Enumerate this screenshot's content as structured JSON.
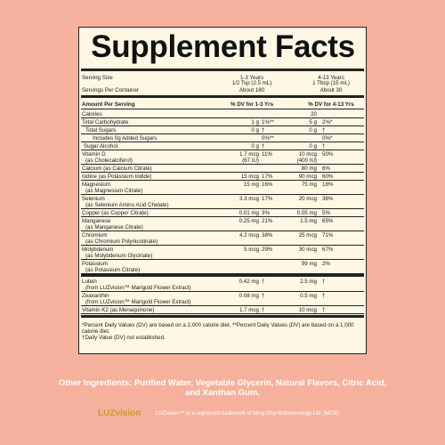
{
  "title": "Supplement Facts",
  "serving": {
    "label": "Serving Size",
    "col1": [
      "1-3 Years",
      "1/2 Tsp (2.5 mL)"
    ],
    "col2": [
      "4-13 Years",
      "1 Tbsp (15 mL)"
    ],
    "containers_label": "Servings Per Container",
    "containers1": "About 180",
    "containers2": "About 30"
  },
  "header": {
    "amount": "Amount Per Serving",
    "dv1": "% DV for 1-3 Yrs",
    "dv2": "% DV for 4-13 Yrs"
  },
  "rows": [
    {
      "name": "Calories",
      "amt2": "20"
    },
    {
      "name": "Total Carbohydrate",
      "amt1": "1 g",
      "dv1": "1%**",
      "amt2": "5 g",
      "dv2": "2%*"
    },
    {
      "name": "Total Sugars",
      "amt1": "0 g",
      "dv1": "†",
      "amt2": "0 g",
      "dv2": "†"
    },
    {
      "name": "Includes 0g Added Sugars",
      "dv1": "0%**",
      "dv2": "0%*"
    },
    {
      "name": "Sugar Alcohol",
      "amt1": "0 g",
      "dv1": "†",
      "amt2": "0 g",
      "dv2": "†"
    },
    {
      "name": "Vitamin D",
      "sub": "(as Cholecalciferol)",
      "amt1": "1.7 mcg",
      "amt1sub": "(67 IU)",
      "dv1": "11%",
      "amt2": "10 mcg",
      "amt2sub": "(400 IU)",
      "dv2": "50%"
    },
    {
      "name": "Calcium (as Calcium Citrate)",
      "amt2": "80 mg",
      "dv2": "6%"
    },
    {
      "name": "Iodine (as Potassium Iodide)",
      "amt1": "15 mcg",
      "dv1": "17%",
      "amt2": "90 mcg",
      "dv2": "60%"
    },
    {
      "name": "Magnesium",
      "sub": "(as Magnesium Citrate)",
      "amt1": "15 mg",
      "dv1": "16%",
      "amt2": "75 mg",
      "dv2": "18%"
    },
    {
      "name": "Selenium",
      "sub": "(as Selenium Amino Acid Chelate)",
      "amt1": "3.3 mcg",
      "dv1": "17%",
      "amt2": "20 mcg",
      "dv2": "36%"
    },
    {
      "name": "Copper (as Copper Citrate)",
      "amt1": "0.01 mg",
      "dv1": "3%",
      "amt2": "0.05 mg",
      "dv2": "5%"
    },
    {
      "name": "Manganese",
      "sub": "(as Manganese Citrate)",
      "amt1": "0.25 mg",
      "dv1": "21%",
      "amt2": "1.5 mg",
      "dv2": "65%"
    },
    {
      "name": "Chromium",
      "sub": "(as Chromium Polynicotinate)",
      "amt1": "4.2 mcg",
      "dv1": "38%",
      "amt2": "25 mcg",
      "dv2": "71%"
    },
    {
      "name": "Molybdenum",
      "sub": "(as Molybdenum Glycinate)",
      "amt1": "5 mcg",
      "dv1": "29%",
      "amt2": "30 mcg",
      "dv2": "67%"
    },
    {
      "name": "Potassium",
      "sub": "(as Potassium Citrate)",
      "amt2": "99 mg",
      "dv2": "2%"
    },
    {
      "name": "Lutein",
      "sub": "(from LUZvision™ Marigold Flower Extract)",
      "amt1": "0.42 mg",
      "dv1": "†",
      "amt2": "2.5 mg",
      "dv2": "†"
    },
    {
      "name": "Zeaxanthin",
      "sub": "(from LUZvision™ Marigold Flower Extract)",
      "amt1": "0.08 mg",
      "dv1": "†",
      "amt2": "0.5 mg",
      "dv2": "†"
    },
    {
      "name": "Vitamin K2 (as Menaquinone)",
      "amt1": "1.7 mcg",
      "dv1": "†",
      "amt2": "10 mcg",
      "dv2": "†"
    }
  ],
  "footnotes": [
    "*Percent Daily Values (DV) are based on a 2,000 calorie diet. **Percent Daily Values (DV) are based on a 1,000 calorie diet.",
    "†Daily Value (DV) not established."
  ],
  "other_ingredients": "Other Ingredients: Purified Water, Vegetable Glycerin, Natural Flavors, Citric Acid, and Xanthan Gum.",
  "footer": {
    "logo": "LUZvision",
    "trademark": "LUZvision™ is a registered trademark of Ming Chyi Biotechnology Ltd. (MCB)"
  }
}
